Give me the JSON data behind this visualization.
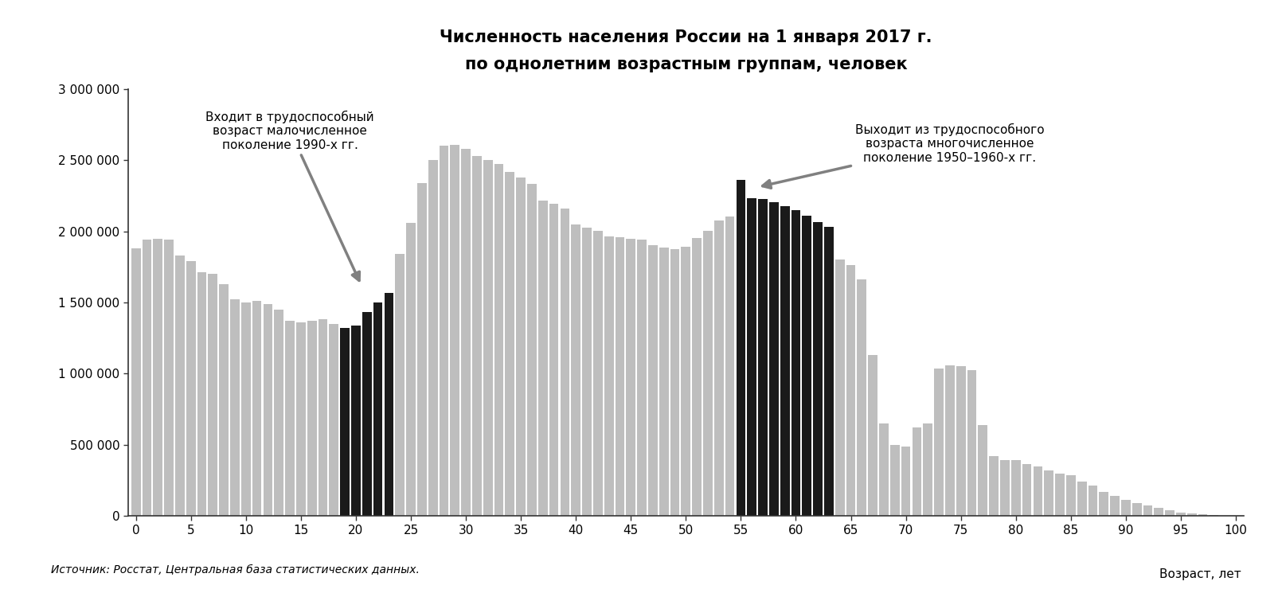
{
  "title_line1": "Численность населения России на 1 января 2017 г.",
  "title_line2": "по однолетним возрастным группам, человек",
  "xlabel": "Возраст, лет",
  "source": "Источник: Росстат, Центральная база статистических данных.",
  "annotation_left": "Входит в трудоспособный\nвозраст малочисленное\nпоколение 1990-х гг.",
  "annotation_right": "Выходит из трудоспособного\nвозраста многочисленное\nпоколение 1950–1960-х гг.",
  "black_bars_left": [
    19,
    20,
    21,
    22,
    23
  ],
  "black_bars_right": [
    55,
    56,
    57,
    58,
    59,
    60,
    61,
    62,
    63
  ],
  "bar_color_gray": "#bebebe",
  "bar_color_black": "#1a1a1a",
  "arrow_color": "#808080",
  "background_color": "#ffffff",
  "ylim": [
    0,
    3000000
  ],
  "ytick_values": [
    0,
    500000,
    1000000,
    1500000,
    2000000,
    2500000,
    3000000
  ],
  "ytick_labels": [
    "0",
    "500 000",
    "1 000 000",
    "1 500 000",
    "2 000 000",
    "2 500 000",
    "3 000 000"
  ],
  "xticks": [
    0,
    5,
    10,
    15,
    20,
    25,
    30,
    35,
    40,
    45,
    50,
    55,
    60,
    65,
    70,
    75,
    80,
    85,
    90,
    95,
    100
  ],
  "values": [
    1880000,
    1940000,
    1945000,
    1940000,
    1830000,
    1790000,
    1710000,
    1700000,
    1630000,
    1520000,
    1500000,
    1510000,
    1490000,
    1450000,
    1370000,
    1360000,
    1370000,
    1380000,
    1350000,
    1320000,
    1340000,
    1430000,
    1500000,
    1565000,
    1840000,
    2060000,
    2340000,
    2500000,
    2600000,
    2605000,
    2580000,
    2530000,
    2500000,
    2475000,
    2415000,
    2380000,
    2335000,
    2215000,
    2195000,
    2160000,
    2050000,
    2025000,
    2005000,
    1965000,
    1960000,
    1945000,
    1940000,
    1905000,
    1885000,
    1875000,
    1890000,
    1950000,
    2005000,
    2075000,
    2105000,
    2360000,
    2235000,
    2225000,
    2205000,
    2175000,
    2150000,
    2110000,
    2065000,
    2030000,
    1800000,
    1760000,
    1660000,
    1130000,
    650000,
    500000,
    490000,
    620000,
    650000,
    1035000,
    1060000,
    1055000,
    1025000,
    640000,
    420000,
    390000,
    390000,
    365000,
    345000,
    320000,
    300000,
    285000,
    240000,
    215000,
    170000,
    140000,
    110000,
    90000,
    75000,
    55000,
    40000,
    25000,
    15000,
    10000,
    6000,
    3000,
    1000
  ]
}
